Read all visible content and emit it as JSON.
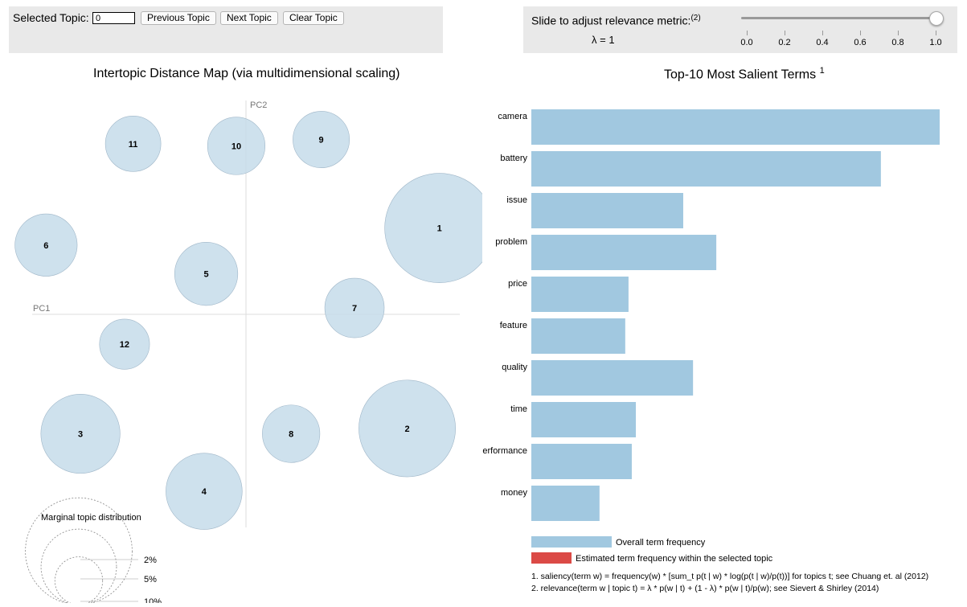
{
  "controls": {
    "selected_topic_label": "Selected Topic:",
    "selected_topic_value": "0",
    "prev_label": "Previous Topic",
    "next_label": "Next Topic",
    "clear_label": "Clear Topic",
    "slider_label": "Slide to adjust relevance metric:",
    "slider_note": "(2)",
    "lambda_text": "λ = 1",
    "lambda_value": 1.0,
    "slider_ticks": [
      "0.0",
      "0.2",
      "0.4",
      "0.6",
      "0.8",
      "1.0"
    ]
  },
  "left_title": "Intertopic Distance Map (via multidimensional scaling)",
  "right_title": "Top-10 Most Salient Terms",
  "right_title_sup": "1",
  "colors": {
    "circle": "#c6dcea",
    "circle_stroke": "#9fb6c8",
    "bar": "#a1c8e0",
    "selected_bar": "#db4a46",
    "axis": "#dddddd"
  },
  "chart_data": [
    {
      "type": "scatter",
      "title": "Intertopic Distance Map (via multidimensional scaling)",
      "xlabel": "PC1",
      "ylabel": "PC2",
      "note": "bubble size = marginal topic distribution",
      "points": [
        {
          "topic": "1",
          "x": 0.18,
          "y": 0.081,
          "size_pct": 10.5
        },
        {
          "topic": "2",
          "x": 0.15,
          "y": -0.107,
          "size_pct": 8.2
        },
        {
          "topic": "3",
          "x": -0.154,
          "y": -0.112,
          "size_pct": 5.5
        },
        {
          "topic": "4",
          "x": -0.039,
          "y": -0.166,
          "size_pct": 5.1
        },
        {
          "topic": "5",
          "x": -0.037,
          "y": 0.038,
          "size_pct": 3.5
        },
        {
          "topic": "6",
          "x": -0.186,
          "y": 0.065,
          "size_pct": 3.4
        },
        {
          "topic": "7",
          "x": 0.101,
          "y": 0.006,
          "size_pct": 3.1
        },
        {
          "topic": "8",
          "x": 0.042,
          "y": -0.112,
          "size_pct": 2.9
        },
        {
          "topic": "9",
          "x": 0.07,
          "y": 0.164,
          "size_pct": 2.8
        },
        {
          "topic": "10",
          "x": -0.009,
          "y": 0.158,
          "size_pct": 2.9
        },
        {
          "topic": "11",
          "x": -0.105,
          "y": 0.16,
          "size_pct": 2.7
        },
        {
          "topic": "12",
          "x": -0.113,
          "y": -0.028,
          "size_pct": 2.2
        }
      ],
      "legend": {
        "title": "Marginal topic distribution",
        "entries": [
          {
            "label": "2%",
            "value": 2
          },
          {
            "label": "5%",
            "value": 5
          },
          {
            "label": "10%",
            "value": 10
          }
        ]
      }
    },
    {
      "type": "bar",
      "orientation": "horizontal",
      "title": "Top-10 Most Salient Terms",
      "categories": [
        "camera",
        "battery",
        "issue",
        "problem",
        "price",
        "feature",
        "quality",
        "time",
        "performance",
        "money"
      ],
      "series": [
        {
          "name": "Overall term frequency",
          "values": [
            100,
            85.6,
            37.2,
            45.3,
            23.8,
            23.0,
            39.6,
            25.6,
            24.6,
            16.7
          ]
        },
        {
          "name": "Estimated term frequency within the selected topic",
          "values": [
            0,
            0,
            0,
            0,
            0,
            0,
            0,
            0,
            0,
            0
          ]
        }
      ],
      "xlim": [
        0,
        100
      ],
      "footnotes": [
        "1. saliency(term w) = frequency(w) * [sum_t p(t | w) * log(p(t | w)/p(t))] for topics t; see Chuang et. al (2012)",
        "2. relevance(term w | topic t) = λ * p(w | t) + (1 - λ) * p(w | t)/p(w); see Sievert & Shirley (2014)"
      ]
    }
  ]
}
